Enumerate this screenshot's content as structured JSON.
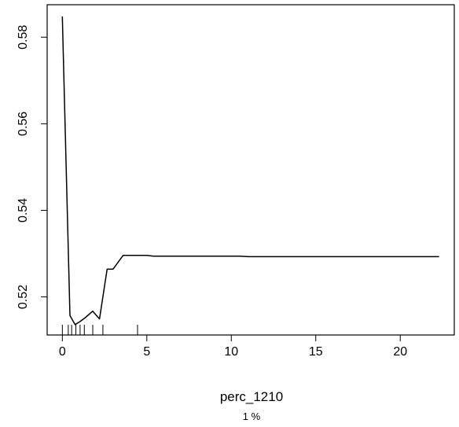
{
  "chart_data": {
    "type": "line",
    "xlabel": "perc_1210",
    "subtitle": "1 %",
    "x_ticks": [
      0,
      5,
      10,
      15,
      20
    ],
    "y_ticks": [
      0.52,
      0.54,
      0.56,
      0.58
    ],
    "x_tick_labels": [
      "0",
      "5",
      "10",
      "15",
      "20"
    ],
    "y_tick_labels": [
      "0.52",
      "0.54",
      "0.56",
      "0.58"
    ],
    "xlim": [
      -0.9,
      23.2
    ],
    "ylim": [
      0.5112,
      0.5875
    ],
    "series": [
      {
        "x": [
          0,
          0.45,
          0.75,
          1.05,
          1.35,
          1.8,
          2.2,
          2.65,
          3.0,
          3.6,
          4.5,
          5.0,
          5.4,
          10.5,
          11.0,
          22.3
        ],
        "y": [
          0.5848,
          0.5157,
          0.5136,
          0.5143,
          0.5152,
          0.5167,
          0.5149,
          0.5264,
          0.5264,
          0.5296,
          0.5296,
          0.5296,
          0.5294,
          0.5294,
          0.5293,
          0.5293
        ],
        "color": "#000000"
      }
    ],
    "rug": [
      0,
      0.35,
      0.55,
      0.8,
      1.05,
      1.3,
      1.8,
      2.4,
      4.45
    ],
    "grid": false,
    "legend": "none"
  }
}
